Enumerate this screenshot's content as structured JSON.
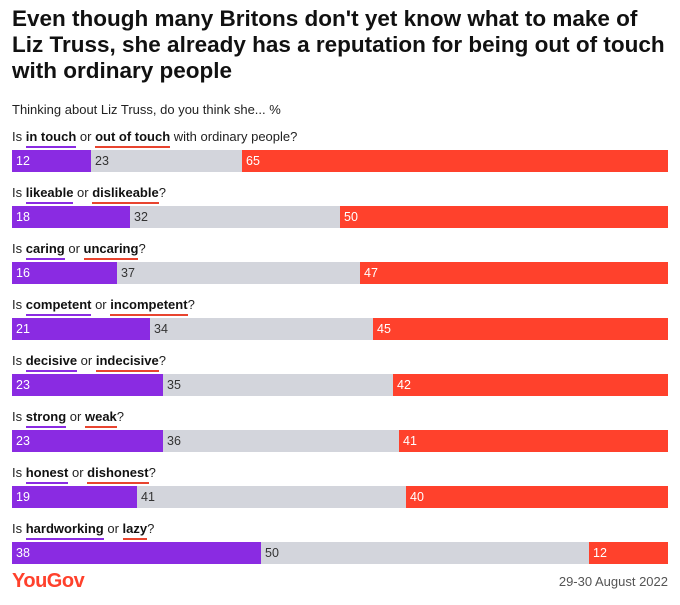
{
  "title": "Even though many Britons don't yet know what to make of Liz Truss, she already has a reputation for being out of touch with ordinary people",
  "subtitle": "Thinking about Liz Truss, do you think she... %",
  "footer": {
    "logo": "YouGov",
    "date": "29-30 August 2022"
  },
  "colors": {
    "positive": "#8a2be2",
    "neutral": "#d3d5dc",
    "negative": "#ff412c"
  },
  "chart_data": {
    "type": "bar",
    "orientation": "horizontal-stacked-100",
    "categories": [
      "Is in touch or out of touch with ordinary people?",
      "Is likeable or dislikeable?",
      "Is caring or uncaring?",
      "Is competent or incompetent?",
      "Is decisive or indecisive?",
      "Is strong or weak?",
      "Is honest or dishonest?",
      "Is hardworking or lazy?"
    ],
    "questions": [
      {
        "prefix": "Is ",
        "pos": "in touch",
        "mid": " or ",
        "neg": "out of touch",
        "suffix": " with ordinary people?",
        "values": [
          12,
          23,
          65
        ]
      },
      {
        "prefix": "Is ",
        "pos": "likeable",
        "mid": " or ",
        "neg": "dislikeable",
        "suffix": "?",
        "values": [
          18,
          32,
          50
        ]
      },
      {
        "prefix": "Is ",
        "pos": "caring",
        "mid": " or ",
        "neg": "uncaring",
        "suffix": "?",
        "values": [
          16,
          37,
          47
        ]
      },
      {
        "prefix": "Is ",
        "pos": "competent",
        "mid": " or ",
        "neg": "incompetent",
        "suffix": "?",
        "values": [
          21,
          34,
          45
        ]
      },
      {
        "prefix": "Is ",
        "pos": "decisive",
        "mid": " or ",
        "neg": "indecisive",
        "suffix": "?",
        "values": [
          23,
          35,
          42
        ]
      },
      {
        "prefix": "Is ",
        "pos": "strong",
        "mid": " or ",
        "neg": "weak",
        "suffix": "?",
        "values": [
          23,
          36,
          41
        ]
      },
      {
        "prefix": "Is ",
        "pos": "honest",
        "mid": " or ",
        "neg": "dishonest",
        "suffix": "?",
        "values": [
          19,
          41,
          40
        ]
      },
      {
        "prefix": "Is ",
        "pos": "hardworking",
        "mid": " or ",
        "neg": "lazy",
        "suffix": "?",
        "values": [
          38,
          50,
          12
        ]
      }
    ],
    "xlim": [
      0,
      100
    ],
    "grid": false,
    "legend": "none"
  }
}
